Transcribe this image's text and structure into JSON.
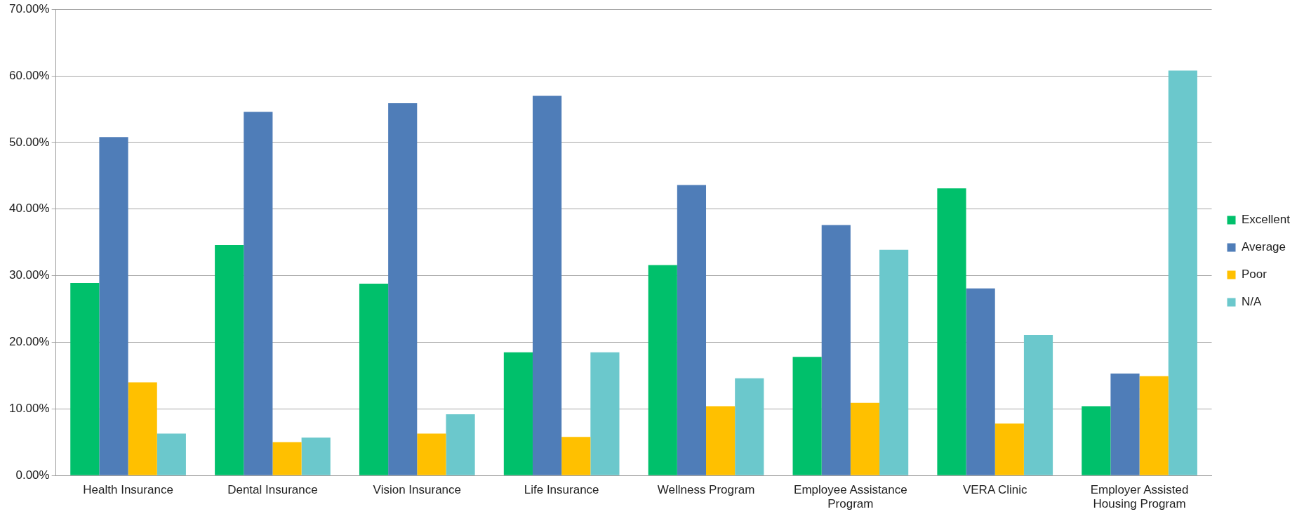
{
  "chart_data": {
    "type": "bar",
    "categories": [
      "Health Insurance",
      "Dental Insurance",
      "Vision Insurance",
      "Life Insurance",
      "Wellness Program",
      "Employee Assistance Program",
      "VERA Clinic",
      "Employer Assisted Housing Program"
    ],
    "series": [
      {
        "name": "Excellent",
        "color": "#00c06b",
        "values": [
          28.9,
          34.6,
          28.8,
          18.5,
          31.6,
          17.8,
          43.1,
          10.4
        ]
      },
      {
        "name": "Average",
        "color": "#4f7db8",
        "values": [
          50.8,
          54.6,
          55.9,
          57.0,
          43.6,
          37.6,
          28.1,
          15.3
        ]
      },
      {
        "name": "Poor",
        "color": "#ffc000",
        "values": [
          14.0,
          5.0,
          6.3,
          5.8,
          10.4,
          10.9,
          7.8,
          14.9
        ]
      },
      {
        "name": "N/A",
        "color": "#6bc8cc",
        "values": [
          6.3,
          5.7,
          9.2,
          18.5,
          14.6,
          33.9,
          21.1,
          60.8
        ]
      }
    ],
    "ylim": [
      0,
      70
    ],
    "yticks": [
      {
        "value": 0,
        "label": "0.00%"
      },
      {
        "value": 10,
        "label": "10.00%"
      },
      {
        "value": 20,
        "label": "20.00%"
      },
      {
        "value": 30,
        "label": "30.00%"
      },
      {
        "value": 40,
        "label": "40.00%"
      },
      {
        "value": 50,
        "label": "50.00%"
      },
      {
        "value": 60,
        "label": "60.00%"
      },
      {
        "value": 70,
        "label": "70.00%"
      }
    ],
    "grid": "y",
    "legend": "right"
  }
}
